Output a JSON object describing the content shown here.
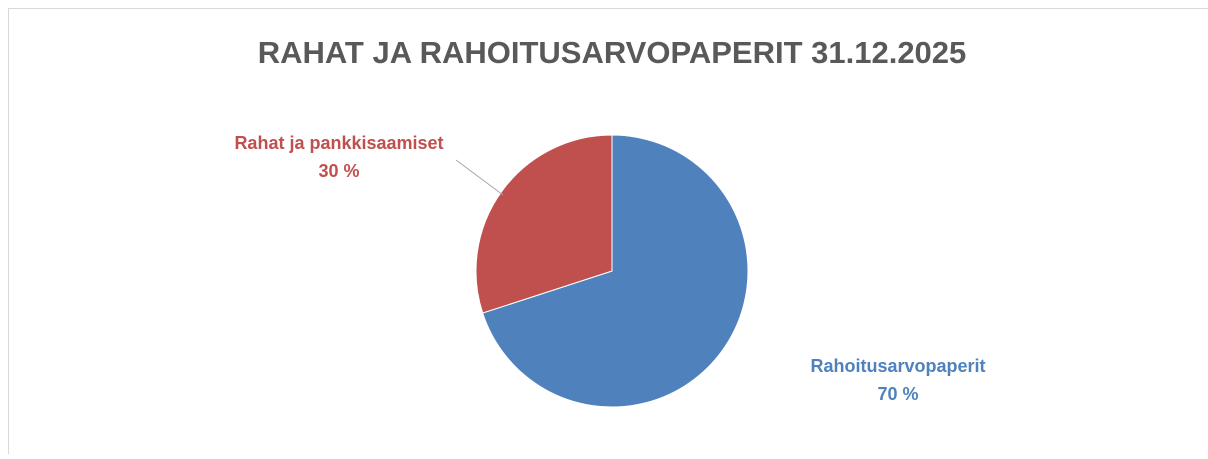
{
  "chart_data": {
    "type": "pie",
    "title": "RAHAT JA RAHOITUSARVOPAPERIT 31.12.2025",
    "categories": [
      "Rahoitusarvopaperit",
      "Rahat ja pankkisaamiset"
    ],
    "values": [
      70,
      30
    ],
    "value_labels": [
      "70 %",
      "30 %"
    ],
    "colors": [
      "#4f81bd",
      "#c0504d"
    ]
  }
}
